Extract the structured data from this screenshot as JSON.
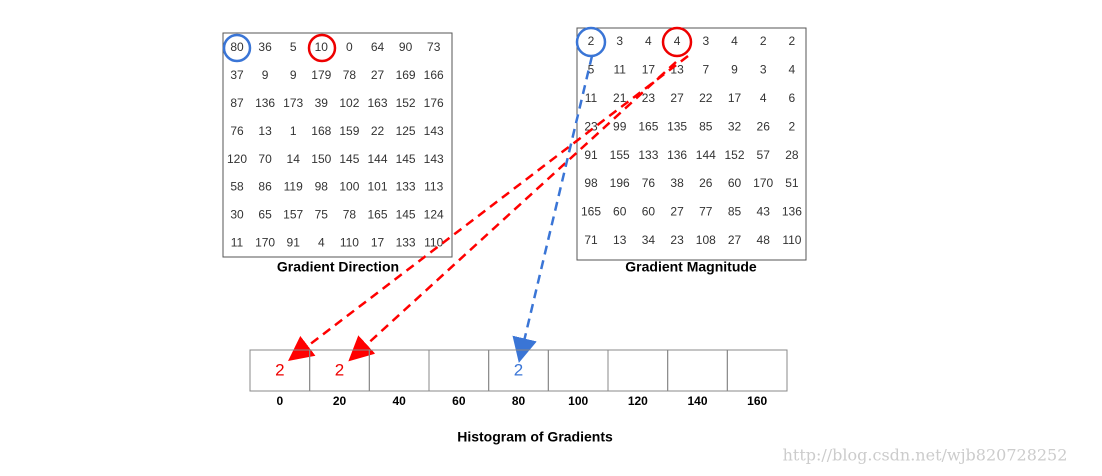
{
  "direction_grid": {
    "title": "Gradient Direction",
    "rows": [
      [
        80,
        36,
        5,
        10,
        0,
        64,
        90,
        73
      ],
      [
        37,
        9,
        9,
        179,
        78,
        27,
        169,
        166
      ],
      [
        87,
        136,
        173,
        39,
        102,
        163,
        152,
        176
      ],
      [
        76,
        13,
        1,
        168,
        159,
        22,
        125,
        143
      ],
      [
        120,
        70,
        14,
        150,
        145,
        144,
        145,
        143
      ],
      [
        58,
        86,
        119,
        98,
        100,
        101,
        133,
        113
      ],
      [
        30,
        65,
        157,
        75,
        78,
        165,
        145,
        124
      ],
      [
        11,
        170,
        91,
        4,
        110,
        17,
        133,
        110
      ]
    ]
  },
  "magnitude_grid": {
    "title": "Gradient Magnitude",
    "rows": [
      [
        2,
        3,
        4,
        4,
        3,
        4,
        2,
        2
      ],
      [
        5,
        11,
        17,
        13,
        7,
        9,
        3,
        4
      ],
      [
        11,
        21,
        23,
        27,
        22,
        17,
        4,
        6
      ],
      [
        23,
        99,
        165,
        135,
        85,
        32,
        26,
        2
      ],
      [
        91,
        155,
        133,
        136,
        144,
        152,
        57,
        28
      ],
      [
        98,
        196,
        76,
        38,
        26,
        60,
        170,
        51
      ],
      [
        165,
        60,
        60,
        27,
        77,
        85,
        43,
        136
      ],
      [
        71,
        13,
        34,
        23,
        108,
        27,
        48,
        110
      ]
    ]
  },
  "histogram": {
    "title": "Histogram of Gradients",
    "bins": [
      {
        "angle": 0,
        "count": 2
      },
      {
        "angle": 20,
        "count": 2
      },
      {
        "angle": 40
      },
      {
        "angle": 60
      },
      {
        "angle": 80,
        "count": 2
      },
      {
        "angle": 100
      },
      {
        "angle": 120
      },
      {
        "angle": 140
      },
      {
        "angle": 160
      }
    ]
  },
  "watermark": "http://blog.csdn.net/wjb820728252"
}
